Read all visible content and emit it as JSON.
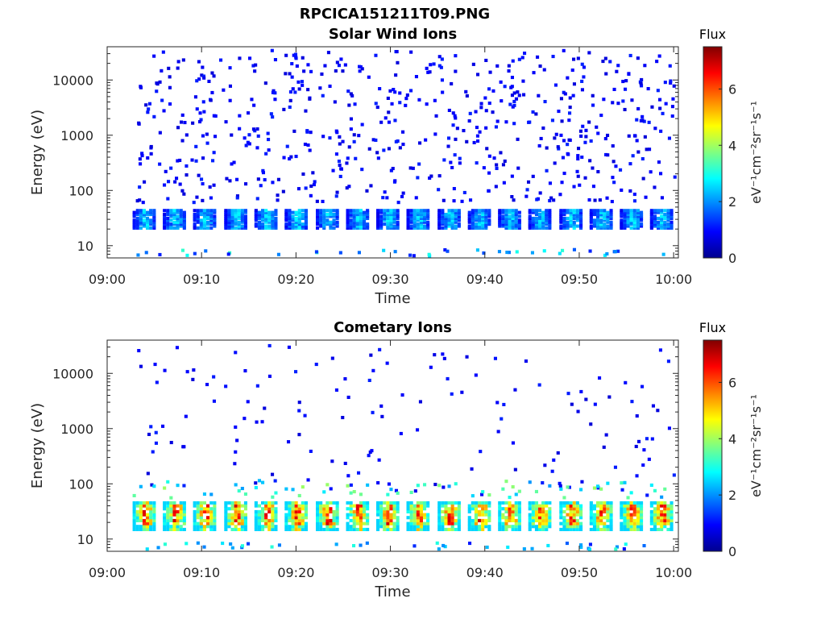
{
  "figure": {
    "filename_title": "RPCICA151211T09.PNG"
  },
  "colormap": {
    "name": "jet",
    "stops": [
      "#00008f",
      "#0000ff",
      "#0080ff",
      "#00ffff",
      "#80ff80",
      "#ffff00",
      "#ff8000",
      "#ff0000",
      "#800000"
    ]
  },
  "chart_data": [
    {
      "type": "heatmap",
      "title": "Solar Wind Ions",
      "xlabel": "Time",
      "ylabel": "Energy (eV)",
      "x_tick_labels": [
        "09:00",
        "09:10",
        "09:20",
        "09:30",
        "09:40",
        "09:50",
        "10:00"
      ],
      "xlim_minutes_after_0900": [
        0,
        60.5
      ],
      "y_scale": "log",
      "y_tick_labels": [
        "10",
        "100",
        "1000",
        "10000"
      ],
      "ylim": [
        6,
        40000
      ],
      "colorbar": {
        "label": "Flux",
        "unit_label": "eV⁻¹cm⁻²sr⁻¹s⁻¹",
        "ticks": [
          "0",
          "2",
          "4",
          "6"
        ],
        "range": [
          0,
          7.5
        ]
      },
      "description_of_content": "Sparse blue single-count pixels at 60–30000 eV; periodic blue/cyan/green bands at 20–45 eV roughly every 3.2 min from 09:03 to 10:00; occasional cyan/blue pixels near 7 eV",
      "band_center_minutes": [
        3.9,
        7.1,
        10.3,
        13.6,
        16.8,
        20.0,
        23.3,
        26.5,
        29.7,
        32.9,
        36.2,
        39.4,
        42.6,
        45.8,
        49.1,
        52.3,
        55.5,
        58.7
      ],
      "band_energy_range_eV": [
        20,
        45
      ],
      "band_typical_flux": 2.5,
      "background_flux": 1.0
    },
    {
      "type": "heatmap",
      "title": "Cometary Ions",
      "xlabel": "Time",
      "ylabel": "Energy (eV)",
      "x_tick_labels": [
        "09:00",
        "09:10",
        "09:20",
        "09:30",
        "09:40",
        "09:50",
        "10:00"
      ],
      "xlim_minutes_after_0900": [
        0,
        60.5
      ],
      "y_scale": "log",
      "y_tick_labels": [
        "10",
        "100",
        "1000",
        "10000"
      ],
      "ylim": [
        6,
        40000
      ],
      "colorbar": {
        "label": "Flux",
        "unit_label": "eV⁻¹cm⁻²sr⁻¹s⁻¹",
        "ticks": [
          "0",
          "2",
          "4",
          "6"
        ],
        "range": [
          0,
          7.5
        ]
      },
      "description_of_content": "Periodic intense orange/red bands at 15–45 eV every ~3.2 min with green/yellow fringes; sparse blue pixels up to ~10000 eV",
      "band_center_minutes": [
        3.9,
        7.1,
        10.3,
        13.6,
        16.8,
        20.0,
        23.3,
        26.5,
        29.7,
        32.9,
        36.2,
        39.4,
        42.6,
        45.8,
        49.1,
        52.3,
        55.5,
        58.7
      ],
      "band_energy_range_eV": [
        14,
        48
      ],
      "band_typical_flux": 6.0,
      "background_flux": 1.0
    }
  ]
}
